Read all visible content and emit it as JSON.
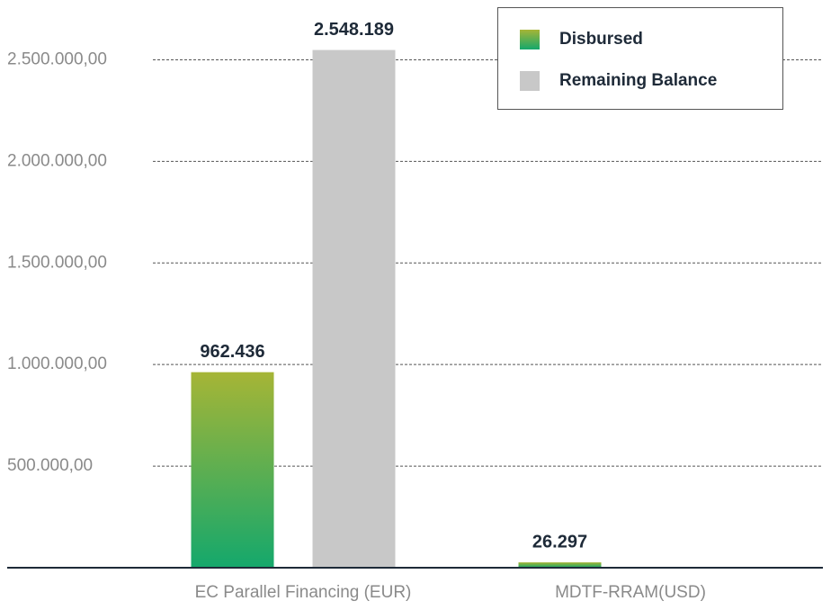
{
  "chart_data": {
    "type": "bar",
    "categories": [
      "EC Parallel Financing (EUR)",
      "MDTF-RRAM(USD)"
    ],
    "series": [
      {
        "name": "Disbursed",
        "color": "#a6b536",
        "values": [
          962436,
          26297
        ],
        "value_labels": [
          "962.436",
          "26.297"
        ]
      },
      {
        "name": "Remaining Balance",
        "color": "#c8c8c8",
        "values": [
          2548189,
          null
        ],
        "value_labels": [
          "2.548.189",
          null
        ]
      }
    ],
    "ylim": [
      0,
      2750000
    ],
    "yticks": [
      {
        "value": 500000,
        "label": "500.000,00"
      },
      {
        "value": 1000000,
        "label": "1.000.000,00"
      },
      {
        "value": 1500000,
        "label": "1.500.000,00"
      },
      {
        "value": 2000000,
        "label": "2.000.000,00"
      },
      {
        "value": 2500000,
        "label": "2.500.000,00"
      }
    ],
    "grid": true,
    "legend": "upper right"
  }
}
